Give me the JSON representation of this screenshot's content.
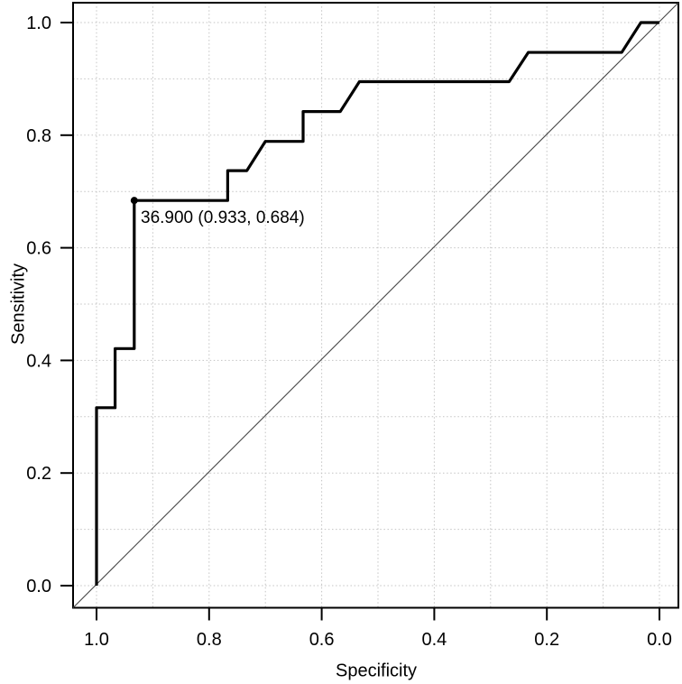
{
  "chart_data": {
    "type": "line",
    "subtype": "roc-step-curve",
    "title": "",
    "xlabel": "Specificity",
    "ylabel": "Sensitivity",
    "x_axis_reversed": true,
    "xlim": [
      1.0,
      0.0
    ],
    "ylim": [
      0.0,
      1.0
    ],
    "grid": {
      "on": true,
      "interval": 0.1,
      "style": "dotted"
    },
    "ticks": {
      "x": [
        {
          "label": "1.0",
          "value": 1.0
        },
        {
          "label": "0.8",
          "value": 0.8
        },
        {
          "label": "0.6",
          "value": 0.6
        },
        {
          "label": "0.4",
          "value": 0.4
        },
        {
          "label": "0.2",
          "value": 0.2
        },
        {
          "label": "0.0",
          "value": 0.0
        }
      ],
      "y": [
        {
          "label": "0.0",
          "value": 0.0
        },
        {
          "label": "0.2",
          "value": 0.2
        },
        {
          "label": "0.4",
          "value": 0.4
        },
        {
          "label": "0.6",
          "value": 0.6
        },
        {
          "label": "0.8",
          "value": 0.8
        },
        {
          "label": "1.0",
          "value": 1.0
        }
      ]
    },
    "series": [
      {
        "name": "ROC curve",
        "x_is": "specificity",
        "y_is": "sensitivity",
        "points": [
          [
            1.0,
            0.0
          ],
          [
            1.0,
            0.316
          ],
          [
            0.967,
            0.316
          ],
          [
            0.967,
            0.421
          ],
          [
            0.933,
            0.421
          ],
          [
            0.933,
            0.684
          ],
          [
            0.767,
            0.684
          ],
          [
            0.767,
            0.737
          ],
          [
            0.733,
            0.737
          ],
          [
            0.7,
            0.789
          ],
          [
            0.633,
            0.789
          ],
          [
            0.633,
            0.842
          ],
          [
            0.567,
            0.842
          ],
          [
            0.533,
            0.895
          ],
          [
            0.267,
            0.895
          ],
          [
            0.233,
            0.947
          ],
          [
            0.067,
            0.947
          ],
          [
            0.033,
            1.0
          ],
          [
            0.0,
            1.0
          ]
        ]
      }
    ],
    "reference_line": {
      "name": "chance diagonal",
      "from": [
        1.0,
        0.0
      ],
      "to": [
        0.0,
        1.0
      ]
    },
    "annotation": {
      "threshold": "36.900",
      "specificity": 0.933,
      "sensitivity": 0.684,
      "label": "36.900 (0.933, 0.684)",
      "marker": "filled-circle"
    },
    "legend": {
      "shown": false
    },
    "colors": {
      "curve": "#000000",
      "reference": "#474747",
      "grid": "#c4c4c4",
      "frame": "#000000",
      "text": "#000000",
      "background": "#ffffff"
    }
  }
}
